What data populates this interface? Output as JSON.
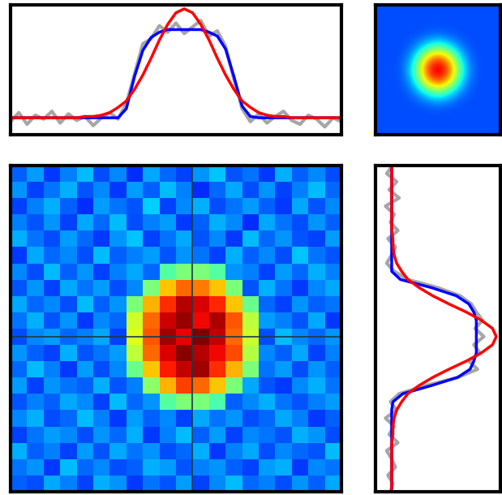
{
  "chart_data": [
    {
      "type": "line",
      "x": [
        0,
        1,
        2,
        3,
        4,
        5,
        6,
        7,
        8,
        9,
        10,
        11,
        12,
        13,
        14,
        15,
        16,
        17,
        18,
        19,
        20,
        21,
        22,
        23,
        24,
        25,
        26,
        27,
        28,
        29,
        30,
        31,
        32,
        33,
        34,
        35,
        36,
        37,
        38,
        39,
        40
      ],
      "xlim": [
        0,
        40
      ],
      "ylim": [
        0,
        1
      ],
      "xticks": [],
      "yticks": [],
      "tick_labels": false,
      "series": [
        {
          "color": "#a6a6a6",
          "values": [
            0.1,
            0.17,
            0.08,
            0.15,
            0.12,
            0.18,
            0.09,
            0.16,
            0.11,
            0.14,
            0.07,
            0.13,
            0.17,
            0.12,
            0.24,
            0.47,
            0.7,
            0.74,
            0.84,
            0.79,
            0.86,
            0.78,
            0.83,
            0.88,
            0.76,
            0.8,
            0.68,
            0.43,
            0.2,
            0.1,
            0.16,
            0.09,
            0.14,
            0.18,
            0.11,
            0.08,
            0.15,
            0.12,
            0.06,
            0.13,
            0.1
          ]
        },
        {
          "color": "#0000ff",
          "values": [
            0.13,
            0.13,
            0.13,
            0.13,
            0.13,
            0.13,
            0.13,
            0.13,
            0.13,
            0.13,
            0.13,
            0.13,
            0.13,
            0.13,
            0.2,
            0.45,
            0.65,
            0.75,
            0.79,
            0.81,
            0.81,
            0.81,
            0.81,
            0.81,
            0.79,
            0.76,
            0.66,
            0.45,
            0.22,
            0.14,
            0.13,
            0.13,
            0.13,
            0.13,
            0.13,
            0.13,
            0.13,
            0.13,
            0.13,
            0.13,
            0.13
          ]
        },
        {
          "color": "#ff0000",
          "values": [
            0.13,
            0.13,
            0.13,
            0.13,
            0.13,
            0.13,
            0.13,
            0.13,
            0.13,
            0.14,
            0.14,
            0.15,
            0.17,
            0.21,
            0.26,
            0.35,
            0.46,
            0.59,
            0.73,
            0.85,
            0.94,
            0.97,
            0.94,
            0.85,
            0.73,
            0.59,
            0.46,
            0.35,
            0.26,
            0.21,
            0.17,
            0.15,
            0.14,
            0.14,
            0.13,
            0.13,
            0.13,
            0.13,
            0.13,
            0.13,
            0.13
          ]
        }
      ]
    },
    {
      "type": "heatmap",
      "color": "jet",
      "range": [
        0,
        1
      ],
      "xticks": [],
      "yticks": [],
      "tick_labels": false,
      "cells": [
        [
          0.2,
          0.2,
          0.2,
          0.2,
          0.2,
          0.2,
          0.2,
          0.2,
          0.2,
          0.2,
          0.2
        ],
        [
          0.2,
          0.2,
          0.2,
          0.2,
          0.2,
          0.2,
          0.2,
          0.2,
          0.2,
          0.2,
          0.2
        ],
        [
          0.2,
          0.2,
          0.2,
          0.2,
          0.21,
          0.22,
          0.21,
          0.2,
          0.2,
          0.2,
          0.2
        ],
        [
          0.2,
          0.2,
          0.2,
          0.24,
          0.35,
          0.45,
          0.35,
          0.24,
          0.2,
          0.2,
          0.2
        ],
        [
          0.2,
          0.2,
          0.21,
          0.35,
          0.7,
          0.85,
          0.7,
          0.35,
          0.21,
          0.2,
          0.2
        ],
        [
          0.2,
          0.2,
          0.22,
          0.45,
          0.85,
          1.0,
          0.85,
          0.45,
          0.22,
          0.2,
          0.2
        ],
        [
          0.2,
          0.2,
          0.21,
          0.35,
          0.7,
          0.85,
          0.7,
          0.35,
          0.21,
          0.2,
          0.2
        ],
        [
          0.2,
          0.2,
          0.2,
          0.24,
          0.35,
          0.45,
          0.35,
          0.24,
          0.2,
          0.2,
          0.2
        ],
        [
          0.2,
          0.2,
          0.2,
          0.2,
          0.21,
          0.22,
          0.21,
          0.2,
          0.2,
          0.2,
          0.2
        ],
        [
          0.2,
          0.2,
          0.2,
          0.2,
          0.2,
          0.2,
          0.2,
          0.2,
          0.2,
          0.2,
          0.2
        ],
        [
          0.2,
          0.2,
          0.2,
          0.2,
          0.2,
          0.2,
          0.2,
          0.2,
          0.2,
          0.2,
          0.2
        ]
      ]
    },
    {
      "type": "heatmap",
      "color": "jet",
      "range": [
        0,
        1
      ],
      "xticks": [],
      "yticks": [],
      "tick_labels": false,
      "crosshair": {
        "x": 10.5,
        "y": 10.0
      },
      "cells": [
        [
          0.22,
          0.28,
          0.18,
          0.25,
          0.31,
          0.2,
          0.26,
          0.17,
          0.29,
          0.23,
          0.19,
          0.27,
          0.32,
          0.21,
          0.24,
          0.18,
          0.3,
          0.22,
          0.26,
          0.2
        ],
        [
          0.27,
          0.19,
          0.24,
          0.3,
          0.21,
          0.26,
          0.18,
          0.28,
          0.22,
          0.31,
          0.25,
          0.17,
          0.23,
          0.29,
          0.2,
          0.27,
          0.19,
          0.25,
          0.31,
          0.23
        ],
        [
          0.19,
          0.25,
          0.3,
          0.22,
          0.17,
          0.28,
          0.24,
          0.21,
          0.33,
          0.19,
          0.26,
          0.3,
          0.2,
          0.24,
          0.28,
          0.22,
          0.18,
          0.29,
          0.21,
          0.26
        ],
        [
          0.25,
          0.21,
          0.27,
          0.19,
          0.29,
          0.23,
          0.31,
          0.2,
          0.25,
          0.28,
          0.18,
          0.22,
          0.3,
          0.26,
          0.17,
          0.29,
          0.24,
          0.2,
          0.27,
          0.22
        ],
        [
          0.3,
          0.24,
          0.2,
          0.28,
          0.23,
          0.18,
          0.27,
          0.32,
          0.19,
          0.24,
          0.29,
          0.21,
          0.26,
          0.18,
          0.31,
          0.23,
          0.27,
          0.21,
          0.19,
          0.28
        ],
        [
          0.18,
          0.29,
          0.23,
          0.26,
          0.2,
          0.31,
          0.22,
          0.25,
          0.28,
          0.21,
          0.27,
          0.24,
          0.19,
          0.3,
          0.22,
          0.26,
          0.2,
          0.32,
          0.24,
          0.21
        ],
        [
          0.26,
          0.2,
          0.31,
          0.22,
          0.27,
          0.19,
          0.25,
          0.29,
          0.23,
          0.45,
          0.5,
          0.5,
          0.45,
          0.27,
          0.25,
          0.19,
          0.28,
          0.23,
          0.3,
          0.25
        ],
        [
          0.21,
          0.27,
          0.19,
          0.29,
          0.24,
          0.28,
          0.2,
          0.26,
          0.5,
          0.7,
          0.8,
          0.78,
          0.7,
          0.5,
          0.21,
          0.3,
          0.24,
          0.18,
          0.26,
          0.29
        ],
        [
          0.29,
          0.23,
          0.26,
          0.2,
          0.31,
          0.22,
          0.27,
          0.5,
          0.72,
          0.86,
          0.95,
          0.92,
          0.87,
          0.7,
          0.48,
          0.23,
          0.19,
          0.27,
          0.22,
          0.24
        ],
        [
          0.24,
          0.3,
          0.21,
          0.27,
          0.18,
          0.26,
          0.23,
          0.6,
          0.8,
          0.93,
          0.98,
          0.9,
          0.96,
          0.82,
          0.58,
          0.28,
          0.25,
          0.21,
          0.29,
          0.18
        ],
        [
          0.2,
          0.26,
          0.28,
          0.23,
          0.25,
          0.29,
          0.19,
          0.62,
          0.82,
          0.97,
          0.91,
          1.0,
          0.94,
          0.8,
          0.6,
          0.2,
          0.31,
          0.26,
          0.23,
          0.27
        ],
        [
          0.27,
          0.22,
          0.19,
          0.3,
          0.21,
          0.24,
          0.28,
          0.58,
          0.8,
          0.92,
          0.99,
          0.95,
          0.9,
          0.83,
          0.57,
          0.26,
          0.22,
          0.29,
          0.19,
          0.25
        ],
        [
          0.23,
          0.31,
          0.25,
          0.18,
          0.28,
          0.2,
          0.26,
          0.48,
          0.7,
          0.88,
          0.94,
          0.97,
          0.86,
          0.72,
          0.5,
          0.24,
          0.28,
          0.2,
          0.27,
          0.22
        ],
        [
          0.28,
          0.19,
          0.27,
          0.24,
          0.22,
          0.3,
          0.21,
          0.25,
          0.52,
          0.72,
          0.84,
          0.8,
          0.7,
          0.5,
          0.29,
          0.21,
          0.18,
          0.26,
          0.3,
          0.24
        ],
        [
          0.21,
          0.25,
          0.22,
          0.29,
          0.26,
          0.19,
          0.31,
          0.23,
          0.27,
          0.45,
          0.5,
          0.5,
          0.44,
          0.22,
          0.26,
          0.3,
          0.24,
          0.21,
          0.25,
          0.28
        ],
        [
          0.26,
          0.3,
          0.2,
          0.23,
          0.31,
          0.25,
          0.18,
          0.28,
          0.22,
          0.26,
          0.19,
          0.29,
          0.24,
          0.27,
          0.2,
          0.23,
          0.29,
          0.25,
          0.18,
          0.22
        ],
        [
          0.19,
          0.24,
          0.28,
          0.26,
          0.2,
          0.27,
          0.23,
          0.3,
          0.18,
          0.25,
          0.31,
          0.22,
          0.28,
          0.19,
          0.26,
          0.24,
          0.21,
          0.3,
          0.27,
          0.2
        ],
        [
          0.3,
          0.22,
          0.25,
          0.19,
          0.28,
          0.21,
          0.29,
          0.24,
          0.27,
          0.2,
          0.23,
          0.3,
          0.18,
          0.25,
          0.29,
          0.2,
          0.26,
          0.23,
          0.21,
          0.31
        ],
        [
          0.24,
          0.27,
          0.18,
          0.31,
          0.23,
          0.26,
          0.2,
          0.22,
          0.3,
          0.28,
          0.21,
          0.25,
          0.27,
          0.22,
          0.19,
          0.28,
          0.3,
          0.18,
          0.26,
          0.24
        ],
        [
          0.22,
          0.2,
          0.29,
          0.25,
          0.19,
          0.3,
          0.27,
          0.18,
          0.24,
          0.21,
          0.28,
          0.19,
          0.26,
          0.31,
          0.23,
          0.25,
          0.2,
          0.27,
          0.22,
          0.29
        ]
      ]
    },
    {
      "type": "line",
      "orientation": "horizontal",
      "x": [
        0,
        1,
        2,
        3,
        4,
        5,
        6,
        7,
        8,
        9,
        10,
        11,
        12,
        13,
        14,
        15,
        16,
        17,
        18,
        19,
        20,
        21,
        22,
        23,
        24,
        25,
        26,
        27,
        28,
        29,
        30,
        31,
        32,
        33,
        34,
        35,
        36,
        37,
        38,
        39,
        40
      ],
      "xlim": [
        40,
        0
      ],
      "ylim": [
        0,
        1
      ],
      "xticks": [],
      "yticks": [],
      "tick_labels": false,
      "series": [
        {
          "color": "#a6a6a6",
          "values": [
            0.14,
            0.09,
            0.17,
            0.11,
            0.19,
            0.08,
            0.15,
            0.12,
            0.18,
            0.1,
            0.16,
            0.13,
            0.09,
            0.15,
            0.26,
            0.5,
            0.68,
            0.77,
            0.81,
            0.86,
            0.8,
            0.87,
            0.79,
            0.84,
            0.75,
            0.82,
            0.66,
            0.41,
            0.19,
            0.12,
            0.17,
            0.08,
            0.15,
            0.11,
            0.18,
            0.09,
            0.13,
            0.16,
            0.1,
            0.14,
            0.12
          ]
        },
        {
          "color": "#0000ff",
          "values": [
            0.13,
            0.13,
            0.13,
            0.13,
            0.13,
            0.13,
            0.13,
            0.13,
            0.13,
            0.13,
            0.13,
            0.13,
            0.13,
            0.13,
            0.2,
            0.45,
            0.65,
            0.75,
            0.79,
            0.81,
            0.81,
            0.81,
            0.81,
            0.81,
            0.79,
            0.76,
            0.66,
            0.45,
            0.22,
            0.14,
            0.13,
            0.13,
            0.13,
            0.13,
            0.13,
            0.13,
            0.13,
            0.13,
            0.13,
            0.13,
            0.13
          ]
        },
        {
          "color": "#ff0000",
          "values": [
            0.13,
            0.13,
            0.13,
            0.13,
            0.13,
            0.13,
            0.13,
            0.13,
            0.13,
            0.14,
            0.14,
            0.15,
            0.17,
            0.21,
            0.26,
            0.35,
            0.46,
            0.59,
            0.73,
            0.85,
            0.94,
            0.97,
            0.94,
            0.85,
            0.73,
            0.59,
            0.46,
            0.35,
            0.26,
            0.21,
            0.17,
            0.15,
            0.14,
            0.14,
            0.13,
            0.13,
            0.13,
            0.13,
            0.13,
            0.13,
            0.13
          ]
        }
      ]
    }
  ]
}
